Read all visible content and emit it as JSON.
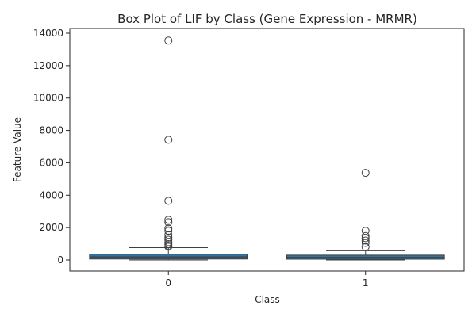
{
  "chart_data": {
    "type": "box",
    "title": "Box Plot of LIF by Class (Gene Expression - MRMR)",
    "xlabel": "Class",
    "ylabel": "Feature Value",
    "categories": [
      "0",
      "1"
    ],
    "ylim": [
      -700,
      14300
    ],
    "yticks": [
      0,
      2000,
      4000,
      6000,
      8000,
      10000,
      12000,
      14000
    ],
    "grid": false,
    "box_color": "#3274a1",
    "boxes": [
      {
        "category": "0",
        "whisker_low": 0,
        "q1": 60,
        "median": 190,
        "q3": 360,
        "whisker_high": 760,
        "outliers": [
          13550,
          7420,
          3650,
          2480,
          2330,
          1950,
          1800,
          1550,
          1380,
          1250,
          1100,
          980,
          880,
          820
        ]
      },
      {
        "category": "1",
        "whisker_low": 0,
        "q1": 50,
        "median": 160,
        "q3": 300,
        "whisker_high": 570,
        "outliers": [
          5380,
          1800,
          1480,
          1350,
          1200,
          1050,
          800
        ]
      }
    ]
  }
}
